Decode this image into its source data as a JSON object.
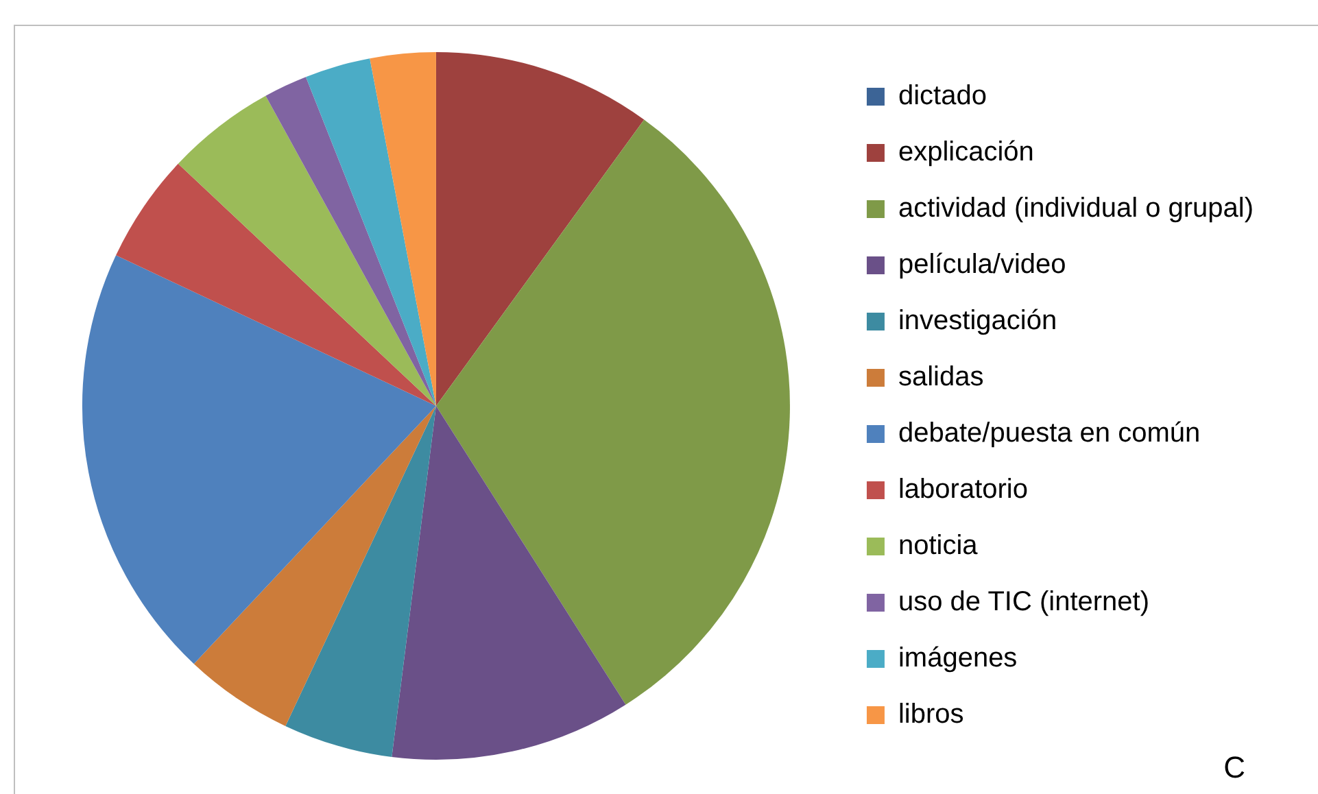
{
  "chart_data": {
    "type": "pie",
    "categories": [
      "dictado",
      "explicación",
      "actividad (individual o grupal)",
      "película/video",
      "investigación",
      "salidas",
      "debate/puesta en común",
      "laboratorio",
      "noticia",
      "uso de TIC (internet)",
      "imágenes",
      "libros"
    ],
    "values": [
      0,
      10,
      31,
      11,
      5,
      5,
      20,
      5,
      5,
      2,
      3,
      3
    ],
    "colors": [
      "#3c6496",
      "#9e413e",
      "#7f9a48",
      "#6a5088",
      "#3d8ba1",
      "#cc7c3a",
      "#4f81bd",
      "#c0504d",
      "#9bbb59",
      "#8064a2",
      "#4bacc6",
      "#f79646"
    ],
    "legend": "right",
    "annotations": [
      "C"
    ]
  }
}
